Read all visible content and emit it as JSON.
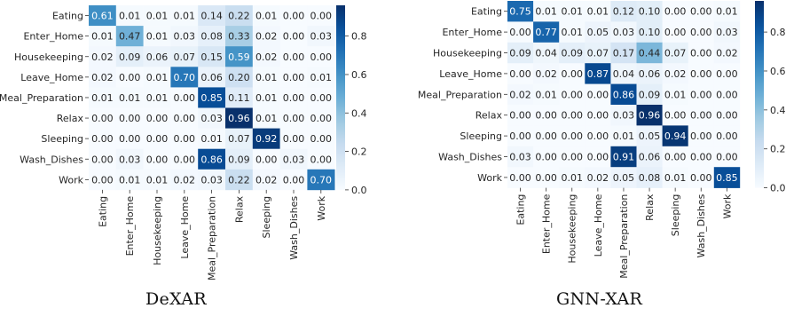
{
  "chart_data": [
    {
      "type": "heatmap",
      "title": "DeXAR",
      "xlabel": "",
      "ylabel": "",
      "categories": [
        "Eating",
        "Enter_Home",
        "Housekeeping",
        "Leave_Home",
        "Meal_Preparation",
        "Relax",
        "Sleeping",
        "Wash_Dishes",
        "Work"
      ],
      "values": [
        [
          0.61,
          0.01,
          0.01,
          0.01,
          0.14,
          0.22,
          0.01,
          0.0,
          0.0
        ],
        [
          0.01,
          0.47,
          0.01,
          0.03,
          0.08,
          0.33,
          0.02,
          0.0,
          0.03
        ],
        [
          0.02,
          0.09,
          0.06,
          0.07,
          0.15,
          0.59,
          0.02,
          0.0,
          0.0
        ],
        [
          0.02,
          0.0,
          0.01,
          0.7,
          0.06,
          0.2,
          0.01,
          0.0,
          0.01
        ],
        [
          0.01,
          0.01,
          0.01,
          0.0,
          0.85,
          0.11,
          0.01,
          0.0,
          0.0
        ],
        [
          0.0,
          0.0,
          0.0,
          0.0,
          0.03,
          0.96,
          0.01,
          0.0,
          0.0
        ],
        [
          0.0,
          0.0,
          0.0,
          0.0,
          0.01,
          0.07,
          0.92,
          0.0,
          0.0
        ],
        [
          0.0,
          0.03,
          0.0,
          0.0,
          0.86,
          0.09,
          0.0,
          0.03,
          0.0
        ],
        [
          0.0,
          0.01,
          0.01,
          0.02,
          0.03,
          0.22,
          0.02,
          0.0,
          0.7
        ]
      ],
      "colorbar": {
        "range": [
          0.0,
          0.96
        ],
        "ticks": [
          "0.0",
          "0.2",
          "0.4",
          "0.6",
          "0.8"
        ],
        "colormap": "Blues"
      }
    },
    {
      "type": "heatmap",
      "title": "GNN-XAR",
      "xlabel": "",
      "ylabel": "",
      "categories": [
        "Eating",
        "Enter_Home",
        "Housekeeping",
        "Leave_Home",
        "Meal_Preparation",
        "Relax",
        "Sleeping",
        "Wash_Dishes",
        "Work"
      ],
      "values": [
        [
          0.75,
          0.01,
          0.01,
          0.01,
          0.12,
          0.1,
          0.0,
          0.0,
          0.01
        ],
        [
          0.0,
          0.77,
          0.01,
          0.05,
          0.03,
          0.1,
          0.0,
          0.0,
          0.03
        ],
        [
          0.09,
          0.04,
          0.09,
          0.07,
          0.17,
          0.44,
          0.07,
          0.0,
          0.02
        ],
        [
          0.0,
          0.02,
          0.0,
          0.87,
          0.04,
          0.06,
          0.02,
          0.0,
          0.0
        ],
        [
          0.02,
          0.01,
          0.0,
          0.0,
          0.86,
          0.09,
          0.01,
          0.0,
          0.0
        ],
        [
          0.0,
          0.0,
          0.0,
          0.0,
          0.03,
          0.96,
          0.0,
          0.0,
          0.0
        ],
        [
          0.0,
          0.0,
          0.0,
          0.0,
          0.01,
          0.05,
          0.94,
          0.0,
          0.0
        ],
        [
          0.03,
          0.0,
          0.0,
          0.0,
          0.91,
          0.06,
          0.0,
          0.0,
          0.0
        ],
        [
          0.0,
          0.0,
          0.01,
          0.02,
          0.05,
          0.08,
          0.01,
          0.0,
          0.85
        ]
      ],
      "colorbar": {
        "range": [
          0.0,
          0.96
        ],
        "ticks": [
          "0.0",
          "0.2",
          "0.4",
          "0.6",
          "0.8"
        ],
        "colormap": "Blues"
      }
    }
  ]
}
